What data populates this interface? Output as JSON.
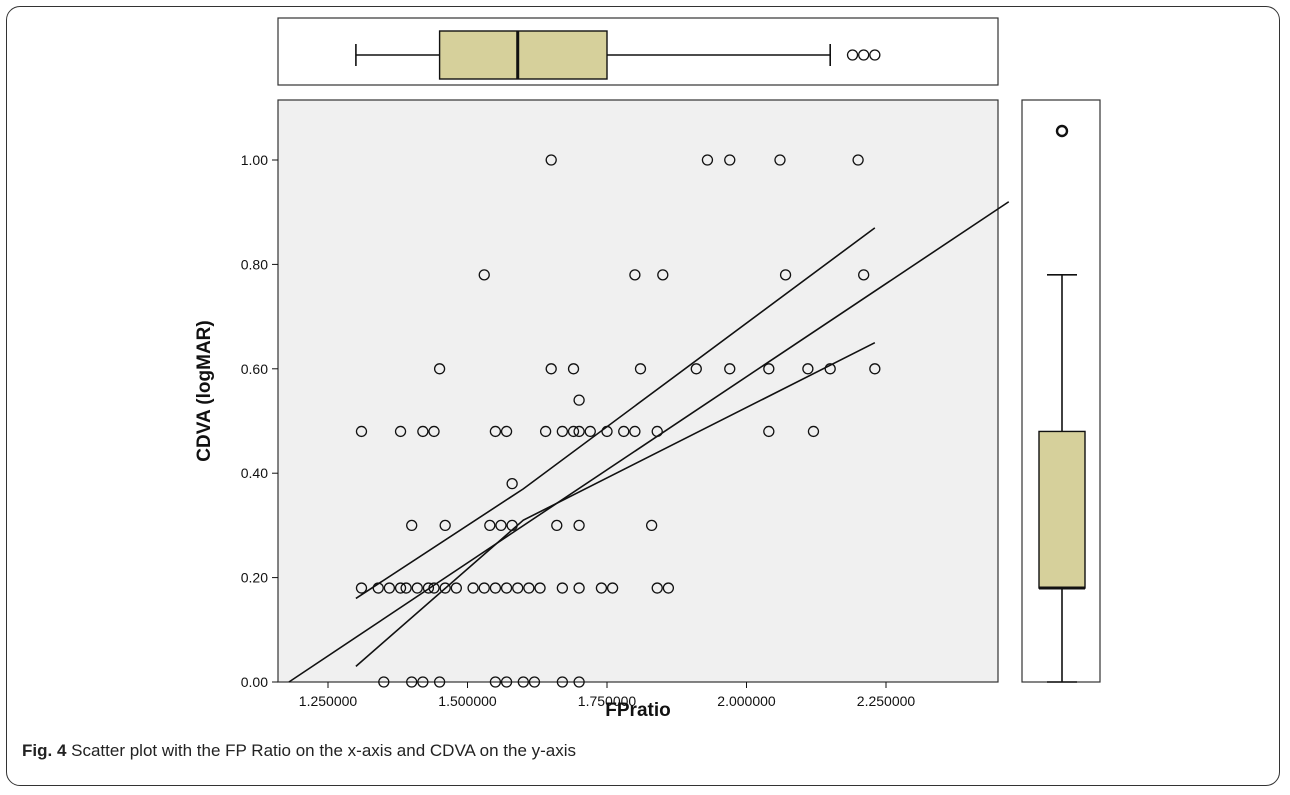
{
  "caption": {
    "label": "Fig. 4",
    "text": " Scatter plot with the FP Ratio on the x-axis and CDVA on the y-axis"
  },
  "colors": {
    "plot_background": "#f0f0f0",
    "box_fill": "#d6d09b",
    "stroke": "#111111"
  },
  "chart_data": [
    {
      "type": "scatter",
      "xlabel": "FPratio",
      "ylabel": "CDVA (logMAR)",
      "xlim": [
        1.12,
        2.47
      ],
      "ylim": [
        0,
        1.1
      ],
      "x_ticks": [
        1.25,
        1.5,
        1.75,
        2.0,
        2.25
      ],
      "x_tick_labels": [
        "1.250000",
        "1.500000",
        "1.750000",
        "2.000000",
        "2.250000"
      ],
      "y_ticks": [
        0,
        0.2,
        0.4,
        0.6,
        0.8,
        1.0
      ],
      "y_tick_labels": [
        "0.00",
        "0.20",
        "0.40",
        "0.60",
        "0.80",
        "1.00"
      ],
      "grid": false,
      "points": [
        [
          1.65,
          1.0
        ],
        [
          1.93,
          1.0
        ],
        [
          1.97,
          1.0
        ],
        [
          2.06,
          1.0
        ],
        [
          2.2,
          1.0
        ],
        [
          1.53,
          0.78
        ],
        [
          1.8,
          0.78
        ],
        [
          1.85,
          0.78
        ],
        [
          2.07,
          0.78
        ],
        [
          2.21,
          0.78
        ],
        [
          1.45,
          0.6
        ],
        [
          1.65,
          0.6
        ],
        [
          1.69,
          0.6
        ],
        [
          1.81,
          0.6
        ],
        [
          1.91,
          0.6
        ],
        [
          1.97,
          0.6
        ],
        [
          2.04,
          0.6
        ],
        [
          2.11,
          0.6
        ],
        [
          2.15,
          0.6
        ],
        [
          2.23,
          0.6
        ],
        [
          1.7,
          0.54
        ],
        [
          1.31,
          0.48
        ],
        [
          1.38,
          0.48
        ],
        [
          1.42,
          0.48
        ],
        [
          1.44,
          0.48
        ],
        [
          1.55,
          0.48
        ],
        [
          1.57,
          0.48
        ],
        [
          1.64,
          0.48
        ],
        [
          1.67,
          0.48
        ],
        [
          1.69,
          0.48
        ],
        [
          1.7,
          0.48
        ],
        [
          1.72,
          0.48
        ],
        [
          1.75,
          0.48
        ],
        [
          1.78,
          0.48
        ],
        [
          1.8,
          0.48
        ],
        [
          1.84,
          0.48
        ],
        [
          2.04,
          0.48
        ],
        [
          2.12,
          0.48
        ],
        [
          1.58,
          0.38
        ],
        [
          1.4,
          0.3
        ],
        [
          1.46,
          0.3
        ],
        [
          1.54,
          0.3
        ],
        [
          1.56,
          0.3
        ],
        [
          1.58,
          0.3
        ],
        [
          1.66,
          0.3
        ],
        [
          1.7,
          0.3
        ],
        [
          1.83,
          0.3
        ],
        [
          1.31,
          0.18
        ],
        [
          1.34,
          0.18
        ],
        [
          1.36,
          0.18
        ],
        [
          1.38,
          0.18
        ],
        [
          1.39,
          0.18
        ],
        [
          1.41,
          0.18
        ],
        [
          1.43,
          0.18
        ],
        [
          1.44,
          0.18
        ],
        [
          1.46,
          0.18
        ],
        [
          1.48,
          0.18
        ],
        [
          1.51,
          0.18
        ],
        [
          1.53,
          0.18
        ],
        [
          1.55,
          0.18
        ],
        [
          1.57,
          0.18
        ],
        [
          1.59,
          0.18
        ],
        [
          1.61,
          0.18
        ],
        [
          1.63,
          0.18
        ],
        [
          1.67,
          0.18
        ],
        [
          1.7,
          0.18
        ],
        [
          1.74,
          0.18
        ],
        [
          1.76,
          0.18
        ],
        [
          1.84,
          0.18
        ],
        [
          1.86,
          0.18
        ],
        [
          1.35,
          0.0
        ],
        [
          1.4,
          0.0
        ],
        [
          1.42,
          0.0
        ],
        [
          1.45,
          0.0
        ],
        [
          1.55,
          0.0
        ],
        [
          1.57,
          0.0
        ],
        [
          1.6,
          0.0
        ],
        [
          1.62,
          0.0
        ],
        [
          1.67,
          0.0
        ],
        [
          1.7,
          0.0
        ]
      ],
      "fit_line": {
        "x": [
          1.18,
          2.47
        ],
        "y": [
          0.0,
          0.92
        ]
      },
      "ci_upper": {
        "x": [
          1.3,
          1.6,
          2.23
        ],
        "y": [
          0.16,
          0.37,
          0.87
        ]
      },
      "ci_lower": {
        "x": [
          1.3,
          1.6,
          2.23
        ],
        "y": [
          0.03,
          0.31,
          0.65
        ]
      }
    },
    {
      "type": "boxplot",
      "axis": "x",
      "variable": "FPratio",
      "min": 1.3,
      "q1": 1.45,
      "median": 1.59,
      "q3": 1.75,
      "max": 2.15,
      "outliers": [
        2.19,
        2.21,
        2.23
      ]
    },
    {
      "type": "boxplot",
      "axis": "y",
      "variable": "CDVA (logMAR)",
      "min": 0.0,
      "q1": 0.18,
      "median": 0.18,
      "q3": 0.48,
      "max": 0.78,
      "outliers": [
        1.0
      ]
    }
  ]
}
